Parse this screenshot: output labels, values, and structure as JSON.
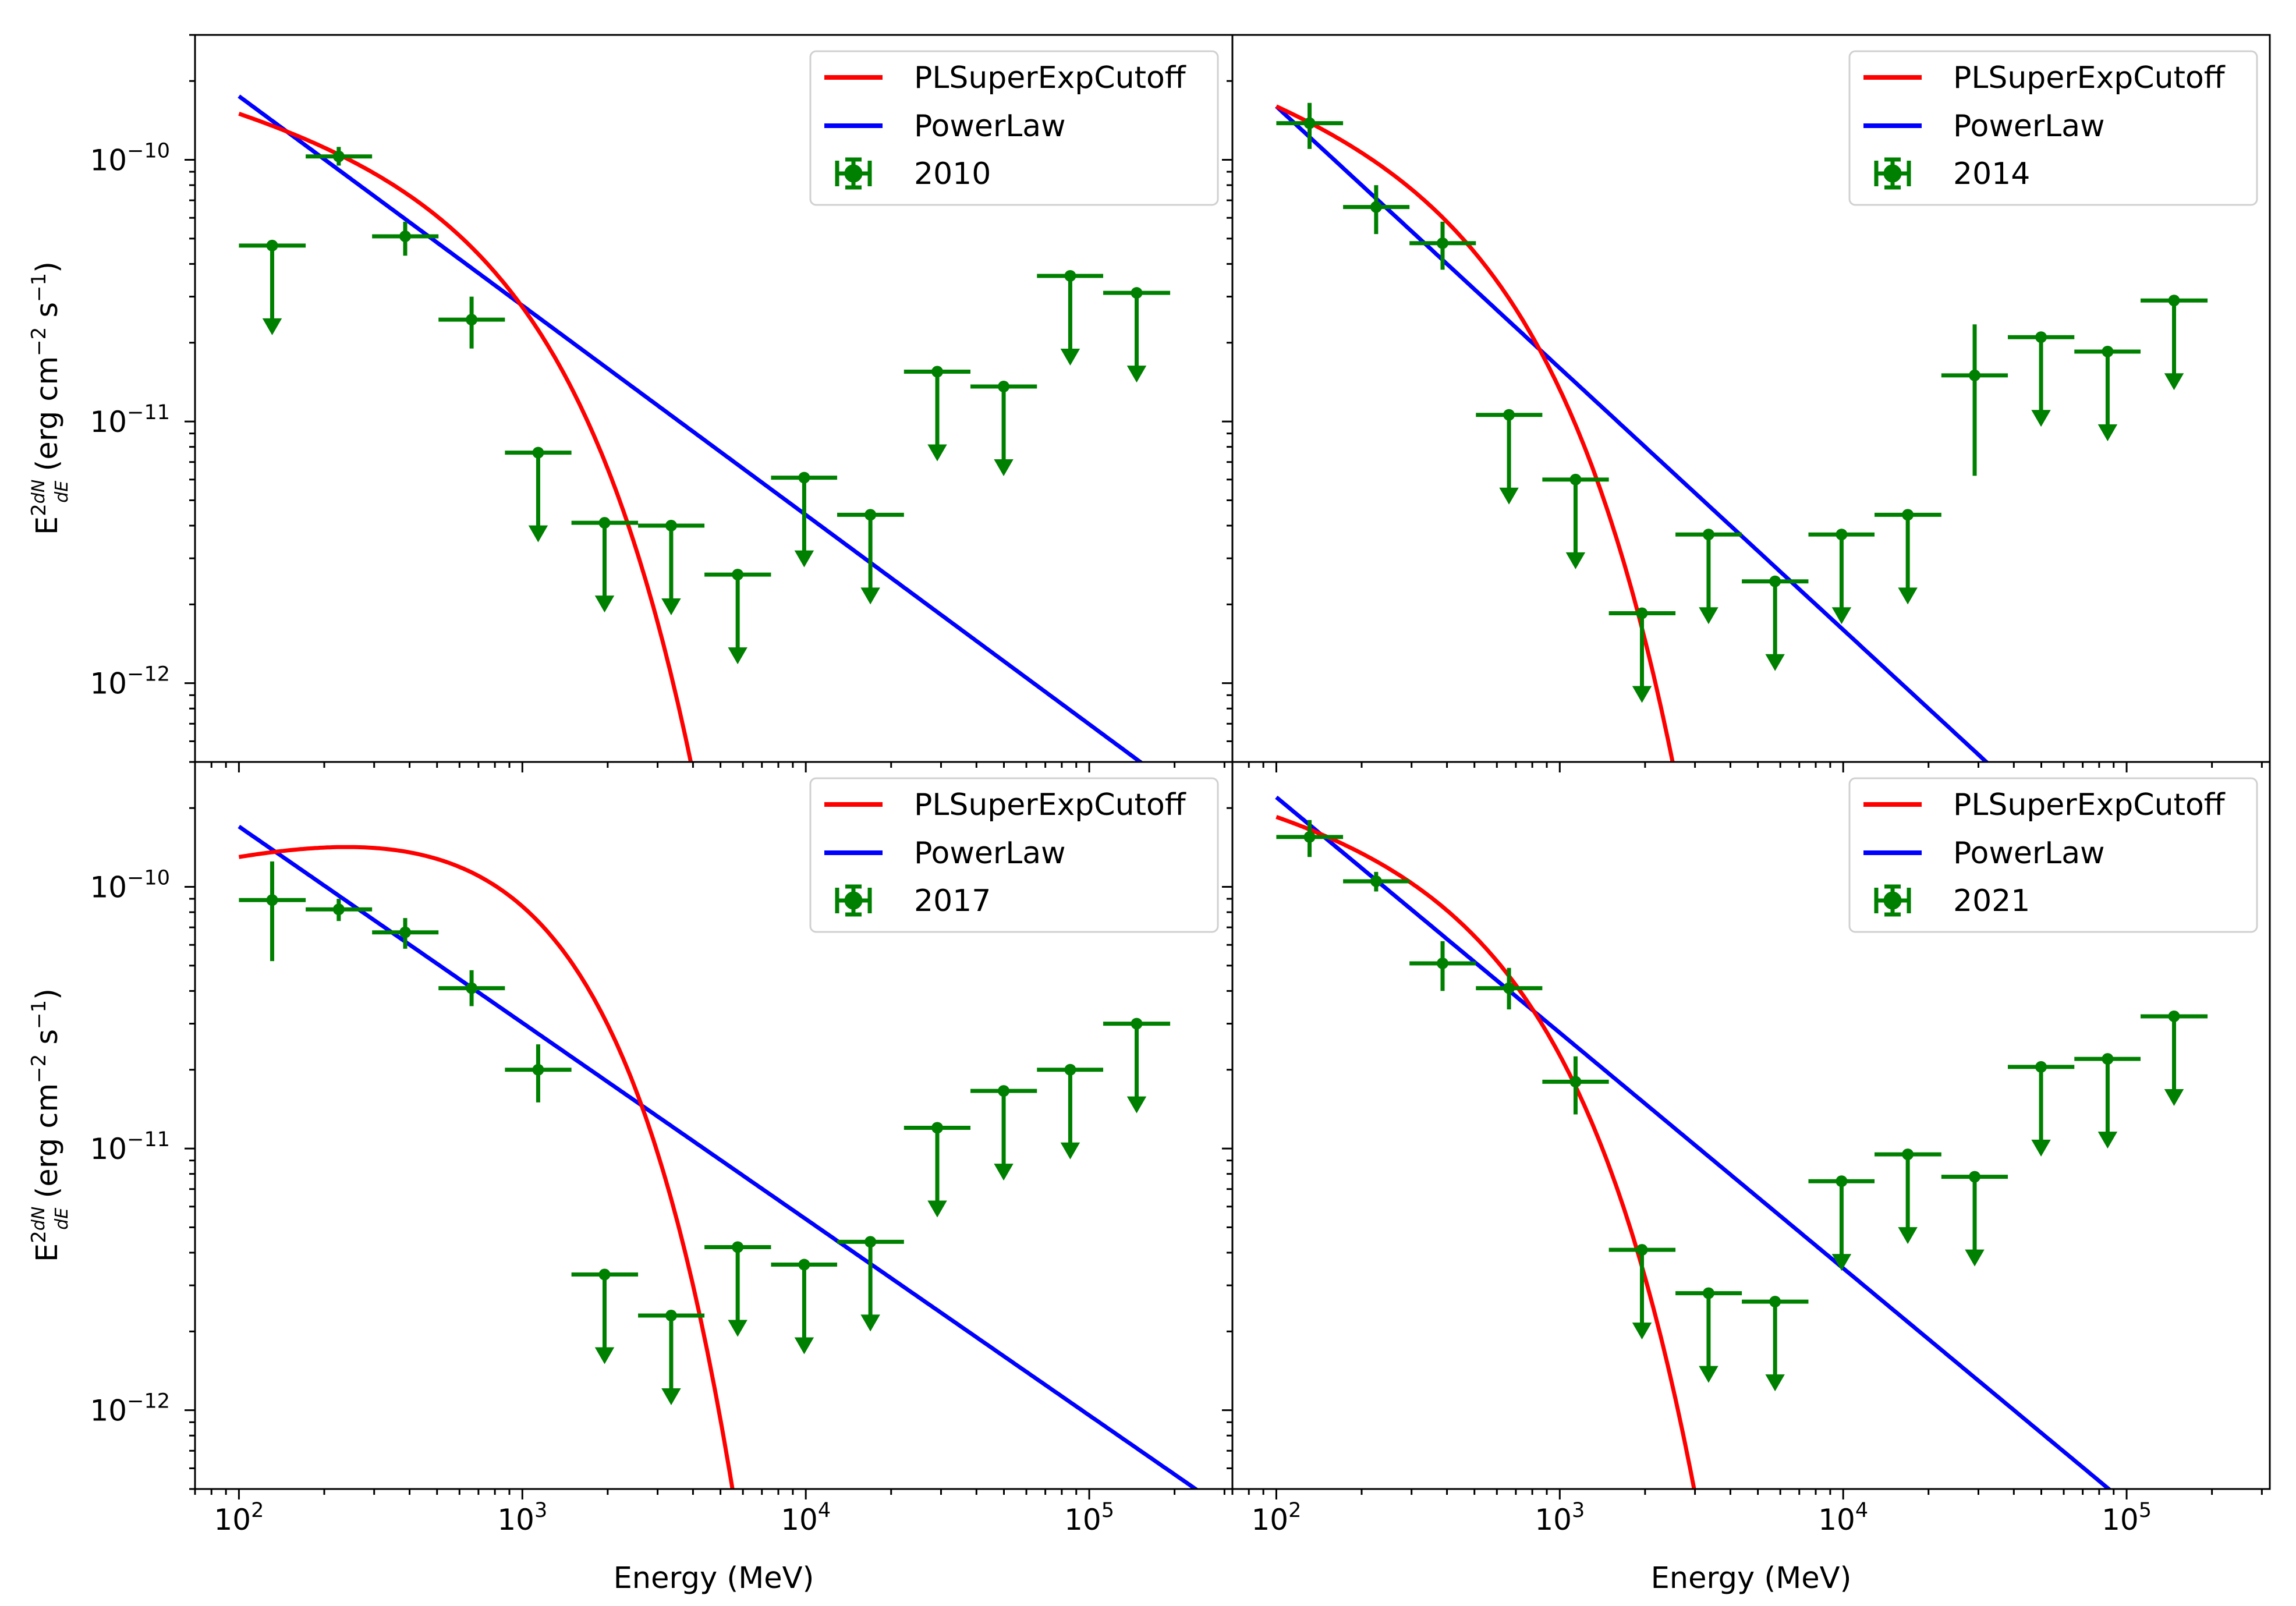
{
  "figure": {
    "xlabel": "Energy (MeV)",
    "ylabel": {
      "prefix": "E",
      "power": "2",
      "frac_num": "dN",
      "frac_den": "dE",
      "units_main": " (erg cm",
      "units_exp1": "−2",
      "units_mid": " s",
      "units_exp2": "−1",
      "units_end": ")"
    },
    "xticks": [
      {
        "value": 100,
        "base": "10",
        "exp": "2"
      },
      {
        "value": 1000,
        "base": "10",
        "exp": "3"
      },
      {
        "value": 10000,
        "base": "10",
        "exp": "4"
      },
      {
        "value": 100000,
        "base": "10",
        "exp": "5"
      }
    ],
    "yticks": [
      {
        "value": 1e-10,
        "base": "10",
        "exp": "−10"
      },
      {
        "value": 1e-11,
        "base": "10",
        "exp": "−11"
      },
      {
        "value": 1e-12,
        "base": "10",
        "exp": "−12"
      }
    ],
    "colors": {
      "cutoff": "#ff0000",
      "powerlaw": "#0000ff",
      "points": "#008000"
    }
  },
  "chart_data": [
    {
      "type": "scatter",
      "xscale": "log",
      "yscale": "log",
      "xlim": [
        70,
        320000
      ],
      "ylim": [
        5e-13,
        3e-10
      ],
      "legend": {
        "location": "top-right",
        "entries": [
          "PLSuperExpCutoff",
          "PowerLaw",
          "2010"
        ]
      },
      "powerlaw": {
        "e0": 100,
        "f0": 1.75e-10,
        "index": 2.8
      },
      "cutoff": {
        "e0": 100,
        "f0": 1.5e-10,
        "index": 2.25,
        "ecut": 800,
        "b": 1
      },
      "points": [
        {
          "e": 131,
          "elo": 100,
          "ehi": 172,
          "flux": 4.7e-11,
          "ul": true
        },
        {
          "e": 225,
          "elo": 172,
          "ehi": 295,
          "flux": 1.03e-10,
          "errlo": 9.5e-11,
          "errhi": 1.12e-10,
          "ul": false
        },
        {
          "e": 386,
          "elo": 295,
          "ehi": 506,
          "flux": 5.1e-11,
          "errlo": 4.3e-11,
          "errhi": 5.8e-11,
          "ul": false
        },
        {
          "e": 662,
          "elo": 506,
          "ehi": 868,
          "flux": 2.45e-11,
          "errlo": 1.9e-11,
          "errhi": 3e-11,
          "ul": false
        },
        {
          "e": 1137,
          "elo": 868,
          "ehi": 1490,
          "flux": 7.6e-12,
          "ul": true
        },
        {
          "e": 1950,
          "elo": 1490,
          "ehi": 2560,
          "flux": 4.1e-12,
          "ul": true
        },
        {
          "e": 3350,
          "elo": 2560,
          "ehi": 4390,
          "flux": 4e-12,
          "ul": true
        },
        {
          "e": 5750,
          "elo": 4390,
          "ehi": 7540,
          "flux": 2.6e-12,
          "ul": true
        },
        {
          "e": 9870,
          "elo": 7540,
          "ehi": 12900,
          "flux": 6.1e-12,
          "ul": true
        },
        {
          "e": 16900,
          "elo": 12900,
          "ehi": 22200,
          "flux": 4.4e-12,
          "ul": true
        },
        {
          "e": 29100,
          "elo": 22200,
          "ehi": 38100,
          "flux": 1.55e-11,
          "ul": true
        },
        {
          "e": 49900,
          "elo": 38100,
          "ehi": 65400,
          "flux": 1.36e-11,
          "ul": true
        },
        {
          "e": 85700,
          "elo": 65400,
          "ehi": 112000,
          "flux": 3.6e-11,
          "ul": true
        },
        {
          "e": 147000,
          "elo": 112000,
          "ehi": 193000,
          "flux": 3.1e-11,
          "ul": true
        }
      ]
    },
    {
      "type": "scatter",
      "xscale": "log",
      "yscale": "log",
      "xlim": [
        70,
        320000
      ],
      "ylim": [
        5e-13,
        3e-10
      ],
      "legend": {
        "location": "top-right",
        "entries": [
          "PLSuperExpCutoff",
          "PowerLaw",
          "2014"
        ]
      },
      "powerlaw": {
        "e0": 100,
        "f0": 1.6e-10,
        "index": 3.0
      },
      "cutoff": {
        "e0": 100,
        "f0": 1.6e-10,
        "index": 2.3,
        "ecut": 500,
        "b": 1
      },
      "points": [
        {
          "e": 131,
          "elo": 100,
          "ehi": 172,
          "flux": 1.38e-10,
          "errlo": 1.1e-10,
          "errhi": 1.65e-10,
          "ul": false
        },
        {
          "e": 225,
          "elo": 172,
          "ehi": 295,
          "flux": 6.6e-11,
          "errlo": 5.2e-11,
          "errhi": 8e-11,
          "ul": false
        },
        {
          "e": 386,
          "elo": 295,
          "ehi": 506,
          "flux": 4.8e-11,
          "errlo": 3.8e-11,
          "errhi": 5.8e-11,
          "ul": false
        },
        {
          "e": 662,
          "elo": 506,
          "ehi": 868,
          "flux": 1.06e-11,
          "ul": true
        },
        {
          "e": 1137,
          "elo": 868,
          "ehi": 1490,
          "flux": 6e-12,
          "ul": true
        },
        {
          "e": 1950,
          "elo": 1490,
          "ehi": 2560,
          "flux": 1.85e-12,
          "ul": true
        },
        {
          "e": 3350,
          "elo": 2560,
          "ehi": 4390,
          "flux": 3.7e-12,
          "ul": true
        },
        {
          "e": 5750,
          "elo": 4390,
          "ehi": 7540,
          "flux": 2.45e-12,
          "ul": true
        },
        {
          "e": 9870,
          "elo": 7540,
          "ehi": 12900,
          "flux": 3.7e-12,
          "ul": true
        },
        {
          "e": 16900,
          "elo": 12900,
          "ehi": 22200,
          "flux": 4.4e-12,
          "ul": true
        },
        {
          "e": 29100,
          "elo": 22200,
          "ehi": 38100,
          "flux": 1.5e-11,
          "errlo": 6.2e-12,
          "errhi": 2.35e-11,
          "ul": false
        },
        {
          "e": 49900,
          "elo": 38100,
          "ehi": 65400,
          "flux": 2.1e-11,
          "ul": true
        },
        {
          "e": 85700,
          "elo": 65400,
          "ehi": 112000,
          "flux": 1.85e-11,
          "ul": true
        },
        {
          "e": 147000,
          "elo": 112000,
          "ehi": 193000,
          "flux": 2.9e-11,
          "ul": true
        }
      ]
    },
    {
      "type": "scatter",
      "xscale": "log",
      "yscale": "log",
      "xlim": [
        70,
        320000
      ],
      "ylim": [
        5e-13,
        3e-10
      ],
      "legend": {
        "location": "top-right",
        "entries": [
          "PLSuperExpCutoff",
          "PowerLaw",
          "2017"
        ]
      },
      "powerlaw": {
        "e0": 100,
        "f0": 1.7e-10,
        "index": 2.75
      },
      "cutoff": {
        "e0": 100,
        "f0": 1.3e-10,
        "index": 1.7,
        "ecut": 800,
        "b": 1
      },
      "points": [
        {
          "e": 131,
          "elo": 100,
          "ehi": 172,
          "flux": 8.9e-11,
          "errlo": 5.2e-11,
          "errhi": 1.25e-10,
          "ul": false
        },
        {
          "e": 225,
          "elo": 172,
          "ehi": 295,
          "flux": 8.2e-11,
          "errlo": 7.4e-11,
          "errhi": 9e-11,
          "ul": false
        },
        {
          "e": 386,
          "elo": 295,
          "ehi": 506,
          "flux": 6.7e-11,
          "errlo": 5.8e-11,
          "errhi": 7.6e-11,
          "ul": false
        },
        {
          "e": 662,
          "elo": 506,
          "ehi": 868,
          "flux": 4.1e-11,
          "errlo": 3.5e-11,
          "errhi": 4.8e-11,
          "ul": false
        },
        {
          "e": 1137,
          "elo": 868,
          "ehi": 1490,
          "flux": 2e-11,
          "errlo": 1.5e-11,
          "errhi": 2.5e-11,
          "ul": false
        },
        {
          "e": 1950,
          "elo": 1490,
          "ehi": 2560,
          "flux": 3.3e-12,
          "ul": true
        },
        {
          "e": 3350,
          "elo": 2560,
          "ehi": 4390,
          "flux": 2.3e-12,
          "ul": true
        },
        {
          "e": 5750,
          "elo": 4390,
          "ehi": 7540,
          "flux": 4.2e-12,
          "ul": true
        },
        {
          "e": 9870,
          "elo": 7540,
          "ehi": 12900,
          "flux": 3.6e-12,
          "ul": true
        },
        {
          "e": 16900,
          "elo": 12900,
          "ehi": 22200,
          "flux": 4.4e-12,
          "ul": true
        },
        {
          "e": 29100,
          "elo": 22200,
          "ehi": 38100,
          "flux": 1.2e-11,
          "ul": true
        },
        {
          "e": 49900,
          "elo": 38100,
          "ehi": 65400,
          "flux": 1.66e-11,
          "ul": true
        },
        {
          "e": 85700,
          "elo": 65400,
          "ehi": 112000,
          "flux": 2e-11,
          "ul": true
        },
        {
          "e": 147000,
          "elo": 112000,
          "ehi": 193000,
          "flux": 3e-11,
          "ul": true
        }
      ]
    },
    {
      "type": "scatter",
      "xscale": "log",
      "yscale": "log",
      "xlim": [
        70,
        320000
      ],
      "ylim": [
        5e-13,
        3e-10
      ],
      "legend": {
        "location": "top-right",
        "entries": [
          "PLSuperExpCutoff",
          "PowerLaw",
          "2021"
        ]
      },
      "powerlaw": {
        "e0": 100,
        "f0": 2.2e-10,
        "index": 2.9
      },
      "cutoff": {
        "e0": 100,
        "f0": 1.85e-10,
        "index": 2.2,
        "ecut": 550,
        "b": 1
      },
      "points": [
        {
          "e": 131,
          "elo": 100,
          "ehi": 172,
          "flux": 1.55e-10,
          "errlo": 1.3e-10,
          "errhi": 1.8e-10,
          "ul": false
        },
        {
          "e": 225,
          "elo": 172,
          "ehi": 295,
          "flux": 1.05e-10,
          "errlo": 9.6e-11,
          "errhi": 1.14e-10,
          "ul": false
        },
        {
          "e": 386,
          "elo": 295,
          "ehi": 506,
          "flux": 5.1e-11,
          "errlo": 4e-11,
          "errhi": 6.2e-11,
          "ul": false
        },
        {
          "e": 662,
          "elo": 506,
          "ehi": 868,
          "flux": 4.1e-11,
          "errlo": 3.4e-11,
          "errhi": 4.9e-11,
          "ul": false
        },
        {
          "e": 1137,
          "elo": 868,
          "ehi": 1490,
          "flux": 1.8e-11,
          "errlo": 1.35e-11,
          "errhi": 2.25e-11,
          "ul": false
        },
        {
          "e": 1950,
          "elo": 1490,
          "ehi": 2560,
          "flux": 4.1e-12,
          "ul": true
        },
        {
          "e": 3350,
          "elo": 2560,
          "ehi": 4390,
          "flux": 2.8e-12,
          "ul": true
        },
        {
          "e": 5750,
          "elo": 4390,
          "ehi": 7540,
          "flux": 2.6e-12,
          "ul": true
        },
        {
          "e": 9870,
          "elo": 7540,
          "ehi": 12900,
          "flux": 7.5e-12,
          "ul": true
        },
        {
          "e": 16900,
          "elo": 12900,
          "ehi": 22200,
          "flux": 9.5e-12,
          "ul": true
        },
        {
          "e": 29100,
          "elo": 22200,
          "ehi": 38100,
          "flux": 7.8e-12,
          "ul": true
        },
        {
          "e": 49900,
          "elo": 38100,
          "ehi": 65400,
          "flux": 2.05e-11,
          "ul": true
        },
        {
          "e": 85700,
          "elo": 65400,
          "ehi": 112000,
          "flux": 2.2e-11,
          "ul": true
        },
        {
          "e": 147000,
          "elo": 112000,
          "ehi": 193000,
          "flux": 3.2e-11,
          "ul": true
        }
      ]
    }
  ]
}
